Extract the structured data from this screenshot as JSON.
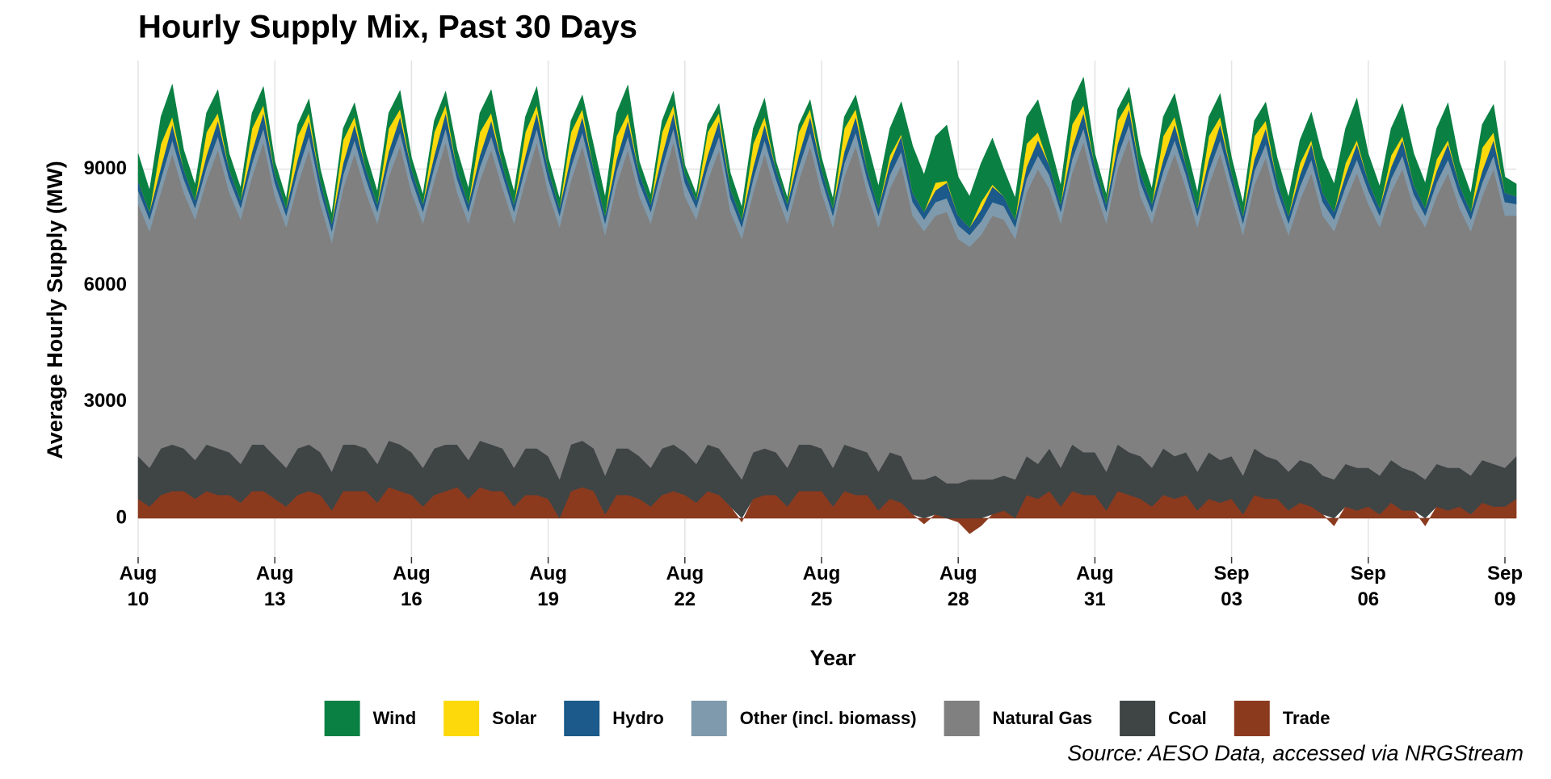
{
  "chart_data": {
    "type": "stacked_area",
    "title": "Hourly Supply Mix, Past 30 Days",
    "x_label": "Year",
    "y_label": "Average Hourly Supply (MW)",
    "source": "Source: AESO Data, accessed via NRGStream",
    "x": [
      "Aug 10 00:00",
      "Aug 10 06:00",
      "Aug 10 12:00",
      "Aug 10 18:00",
      "Aug 11 00:00",
      "Aug 11 06:00",
      "Aug 11 12:00",
      "Aug 11 18:00",
      "Aug 12 00:00",
      "Aug 12 06:00",
      "Aug 12 12:00",
      "Aug 12 18:00",
      "Aug 13 00:00",
      "Aug 13 06:00",
      "Aug 13 12:00",
      "Aug 13 18:00",
      "Aug 14 00:00",
      "Aug 14 06:00",
      "Aug 14 12:00",
      "Aug 14 18:00",
      "Aug 15 00:00",
      "Aug 15 06:00",
      "Aug 15 12:00",
      "Aug 15 18:00",
      "Aug 16 00:00",
      "Aug 16 06:00",
      "Aug 16 12:00",
      "Aug 16 18:00",
      "Aug 17 00:00",
      "Aug 17 06:00",
      "Aug 17 12:00",
      "Aug 17 18:00",
      "Aug 18 00:00",
      "Aug 18 06:00",
      "Aug 18 12:00",
      "Aug 18 18:00",
      "Aug 19 00:00",
      "Aug 19 06:00",
      "Aug 19 12:00",
      "Aug 19 18:00",
      "Aug 20 00:00",
      "Aug 20 06:00",
      "Aug 20 12:00",
      "Aug 20 18:00",
      "Aug 21 00:00",
      "Aug 21 06:00",
      "Aug 21 12:00",
      "Aug 21 18:00",
      "Aug 22 00:00",
      "Aug 22 06:00",
      "Aug 22 12:00",
      "Aug 22 18:00",
      "Aug 23 00:00",
      "Aug 23 06:00",
      "Aug 23 12:00",
      "Aug 23 18:00",
      "Aug 24 00:00",
      "Aug 24 06:00",
      "Aug 24 12:00",
      "Aug 24 18:00",
      "Aug 25 00:00",
      "Aug 25 06:00",
      "Aug 25 12:00",
      "Aug 25 18:00",
      "Aug 26 00:00",
      "Aug 26 06:00",
      "Aug 26 12:00",
      "Aug 26 18:00",
      "Aug 27 00:00",
      "Aug 27 06:00",
      "Aug 27 12:00",
      "Aug 27 18:00",
      "Aug 28 00:00",
      "Aug 28 06:00",
      "Aug 28 12:00",
      "Aug 28 18:00",
      "Aug 29 00:00",
      "Aug 29 06:00",
      "Aug 29 12:00",
      "Aug 29 18:00",
      "Aug 30 00:00",
      "Aug 30 06:00",
      "Aug 30 12:00",
      "Aug 30 18:00",
      "Aug 31 00:00",
      "Aug 31 06:00",
      "Aug 31 12:00",
      "Aug 31 18:00",
      "Sep 01 00:00",
      "Sep 01 06:00",
      "Sep 01 12:00",
      "Sep 01 18:00",
      "Sep 02 00:00",
      "Sep 02 06:00",
      "Sep 02 12:00",
      "Sep 02 18:00",
      "Sep 03 00:00",
      "Sep 03 06:00",
      "Sep 03 12:00",
      "Sep 03 18:00",
      "Sep 04 00:00",
      "Sep 04 06:00",
      "Sep 04 12:00",
      "Sep 04 18:00",
      "Sep 05 00:00",
      "Sep 05 06:00",
      "Sep 05 12:00",
      "Sep 05 18:00",
      "Sep 06 00:00",
      "Sep 06 06:00",
      "Sep 06 12:00",
      "Sep 06 18:00",
      "Sep 07 00:00",
      "Sep 07 06:00",
      "Sep 07 12:00",
      "Sep 07 18:00",
      "Sep 08 00:00",
      "Sep 08 06:00",
      "Sep 08 12:00",
      "Sep 08 18:00",
      "Sep 09 00:00",
      "Sep 09 06:00"
    ],
    "series": [
      {
        "name": "Wind",
        "color": "#0a8043",
        "values": [
          700,
          560,
          700,
          840,
          500,
          400,
          500,
          600,
          400,
          320,
          400,
          480,
          300,
          240,
          300,
          360,
          300,
          240,
          300,
          360,
          400,
          320,
          400,
          480,
          300,
          240,
          300,
          360,
          500,
          400,
          500,
          600,
          400,
          320,
          400,
          480,
          300,
          240,
          300,
          360,
          600,
          480,
          600,
          720,
          300,
          240,
          300,
          360,
          200,
          160,
          200,
          240,
          400,
          320,
          400,
          480,
          200,
          160,
          200,
          240,
          300,
          240,
          300,
          360,
          700,
          560,
          700,
          840,
          1200,
          960,
          1200,
          1440,
          1000,
          800,
          1000,
          1200,
          700,
          560,
          700,
          840,
          600,
          480,
          600,
          720,
          300,
          240,
          300,
          360,
          500,
          400,
          500,
          600,
          500,
          400,
          500,
          600,
          400,
          320,
          400,
          480,
          600,
          480,
          600,
          720,
          900,
          720,
          900,
          1080,
          700,
          560,
          700,
          840,
          800,
          640,
          800,
          960,
          600,
          480,
          600,
          720,
          400,
          320
        ]
      },
      {
        "name": "Solar",
        "color": "#fdd90b",
        "values": [
          0,
          0,
          600,
          200,
          0,
          0,
          600,
          200,
          0,
          0,
          600,
          200,
          0,
          0,
          600,
          200,
          0,
          0,
          600,
          200,
          0,
          0,
          600,
          200,
          0,
          0,
          600,
          200,
          0,
          0,
          600,
          200,
          0,
          0,
          600,
          200,
          0,
          0,
          600,
          200,
          0,
          0,
          600,
          200,
          0,
          0,
          600,
          200,
          0,
          0,
          600,
          200,
          0,
          0,
          600,
          200,
          0,
          0,
          600,
          200,
          0,
          0,
          600,
          200,
          0,
          0,
          200,
          50,
          0,
          0,
          200,
          50,
          0,
          0,
          200,
          50,
          0,
          0,
          600,
          200,
          0,
          0,
          600,
          200,
          0,
          0,
          600,
          200,
          0,
          0,
          600,
          200,
          0,
          0,
          600,
          200,
          0,
          0,
          600,
          200,
          0,
          0,
          300,
          100,
          0,
          0,
          300,
          100,
          0,
          0,
          300,
          100,
          0,
          0,
          300,
          100,
          0,
          0,
          600,
          200,
          0,
          0
        ]
      },
      {
        "name": "Hydro",
        "color": "#1b5a8a",
        "values": [
          250,
          200,
          300,
          400,
          250,
          200,
          300,
          400,
          250,
          200,
          300,
          400,
          250,
          200,
          300,
          400,
          250,
          200,
          300,
          400,
          250,
          200,
          300,
          400,
          250,
          200,
          300,
          400,
          250,
          200,
          300,
          400,
          250,
          200,
          300,
          400,
          250,
          200,
          300,
          400,
          250,
          200,
          300,
          400,
          250,
          200,
          300,
          400,
          250,
          200,
          300,
          400,
          250,
          200,
          300,
          400,
          250,
          200,
          300,
          400,
          250,
          200,
          300,
          400,
          250,
          200,
          300,
          400,
          250,
          200,
          300,
          400,
          250,
          200,
          300,
          400,
          250,
          200,
          300,
          400,
          250,
          200,
          300,
          400,
          250,
          200,
          300,
          400,
          250,
          200,
          300,
          400,
          250,
          200,
          300,
          400,
          250,
          200,
          300,
          400,
          250,
          200,
          300,
          400,
          250,
          200,
          300,
          400,
          250,
          200,
          300,
          400,
          250,
          200,
          300,
          400,
          250,
          200,
          300,
          400,
          250,
          200
        ]
      },
      {
        "name": "Other (incl. biomass)",
        "color": "#7f9aac",
        "values": [
          350,
          300,
          350,
          350,
          350,
          300,
          350,
          350,
          350,
          300,
          350,
          350,
          350,
          300,
          350,
          350,
          350,
          300,
          350,
          350,
          350,
          300,
          350,
          350,
          350,
          300,
          350,
          350,
          350,
          300,
          350,
          350,
          350,
          300,
          350,
          350,
          350,
          300,
          350,
          350,
          350,
          300,
          350,
          350,
          350,
          300,
          350,
          350,
          350,
          300,
          350,
          350,
          350,
          300,
          350,
          350,
          350,
          300,
          350,
          350,
          350,
          300,
          350,
          350,
          350,
          300,
          350,
          350,
          350,
          300,
          350,
          350,
          350,
          300,
          350,
          350,
          350,
          300,
          350,
          350,
          350,
          300,
          350,
          350,
          350,
          300,
          350,
          350,
          350,
          300,
          350,
          350,
          350,
          300,
          350,
          350,
          350,
          300,
          350,
          350,
          350,
          300,
          350,
          350,
          350,
          300,
          350,
          350,
          350,
          300,
          350,
          350,
          350,
          300,
          350,
          350,
          350,
          300,
          350,
          350,
          350,
          300
        ]
      },
      {
        "name": "Natural Gas",
        "color": "#808080",
        "values": [
          6500,
          6100,
          6600,
          7500,
          6600,
          6200,
          6800,
          7700,
          6700,
          6300,
          6900,
          7800,
          6700,
          6200,
          6800,
          7600,
          6400,
          5900,
          6600,
          7500,
          6600,
          6200,
          6800,
          7700,
          6700,
          6300,
          6900,
          7800,
          6500,
          6100,
          6700,
          7600,
          6700,
          6300,
          6900,
          7900,
          6800,
          6500,
          6800,
          7600,
          6600,
          6200,
          6800,
          7700,
          6700,
          6300,
          6900,
          7800,
          6600,
          6300,
          6800,
          7700,
          6500,
          6200,
          6700,
          7600,
          6700,
          6300,
          6800,
          7700,
          6600,
          6200,
          6900,
          7800,
          6700,
          6300,
          6800,
          7500,
          6800,
          6400,
          6700,
          7000,
          6300,
          6000,
          6300,
          6800,
          6600,
          6200,
          6800,
          7600,
          6700,
          6300,
          7000,
          8000,
          6800,
          6400,
          7100,
          8100,
          6700,
          6300,
          6800,
          7800,
          6800,
          6300,
          6900,
          7900,
          6700,
          6200,
          6800,
          7700,
          6600,
          6100,
          6700,
          7500,
          6700,
          6400,
          6800,
          7600,
          6800,
          6400,
          6900,
          7700,
          6800,
          6500,
          6900,
          7600,
          6700,
          6300,
          6800,
          7600,
          6500,
          6200
        ]
      },
      {
        "name": "Coal",
        "color": "#3f4445",
        "values": [
          1100,
          1000,
          1200,
          1200,
          1100,
          1000,
          1200,
          1200,
          1100,
          1000,
          1200,
          1200,
          1100,
          1000,
          1200,
          1200,
          1100,
          1000,
          1200,
          1200,
          1100,
          1000,
          1200,
          1200,
          1100,
          1000,
          1200,
          1200,
          1100,
          1000,
          1200,
          1200,
          1100,
          1000,
          1200,
          1200,
          1100,
          1000,
          1200,
          1200,
          1100,
          1000,
          1200,
          1200,
          1100,
          1000,
          1200,
          1200,
          1100,
          1000,
          1200,
          1200,
          1100,
          1000,
          1200,
          1200,
          1100,
          1000,
          1200,
          1200,
          1100,
          1000,
          1200,
          1200,
          1100,
          1000,
          1200,
          1200,
          900,
          1000,
          1000,
          900,
          900,
          1000,
          1000,
          900,
          900,
          1000,
          1000,
          900,
          1100,
          1000,
          1200,
          1100,
          1100,
          1000,
          1200,
          1100,
          1100,
          1000,
          1200,
          1100,
          1100,
          1000,
          1200,
          1100,
          1100,
          1000,
          1200,
          1100,
          1000,
          1000,
          1100,
          1100,
          1000,
          1000,
          1100,
          1100,
          1000,
          1000,
          1100,
          1100,
          1000,
          1000,
          1100,
          1100,
          1000,
          1000,
          1100,
          1100,
          1000,
          1100
        ]
      },
      {
        "name": "Trade",
        "color": "#8b3a1e",
        "values": [
          500,
          300,
          600,
          700,
          700,
          500,
          700,
          600,
          600,
          400,
          700,
          700,
          500,
          300,
          600,
          700,
          600,
          200,
          700,
          700,
          700,
          400,
          800,
          700,
          600,
          300,
          600,
          700,
          800,
          500,
          800,
          700,
          700,
          300,
          600,
          600,
          500,
          0,
          700,
          800,
          700,
          100,
          600,
          600,
          500,
          300,
          600,
          700,
          600,
          400,
          700,
          600,
          300,
          -100,
          500,
          600,
          600,
          300,
          700,
          700,
          700,
          300,
          700,
          600,
          600,
          200,
          500,
          400,
          100,
          -150,
          100,
          0,
          -100,
          -400,
          -200,
          100,
          200,
          0,
          600,
          500,
          700,
          300,
          700,
          600,
          600,
          200,
          700,
          600,
          500,
          300,
          600,
          500,
          600,
          200,
          500,
          400,
          500,
          100,
          600,
          500,
          500,
          200,
          400,
          300,
          100,
          -200,
          300,
          200,
          300,
          100,
          400,
          200,
          200,
          -200,
          300,
          200,
          300,
          100,
          400,
          300,
          300,
          500
        ]
      }
    ],
    "ylim": [
      -1000,
      11800
    ],
    "yticks": [
      0,
      3000,
      6000,
      9000
    ],
    "xticks": [
      {
        "value": "Aug 10 00:00",
        "label": "Aug 10"
      },
      {
        "value": "Aug 13 00:00",
        "label": "Aug 13"
      },
      {
        "value": "Aug 16 00:00",
        "label": "Aug 16"
      },
      {
        "value": "Aug 19 00:00",
        "label": "Aug 19"
      },
      {
        "value": "Aug 22 00:00",
        "label": "Aug 22"
      },
      {
        "value": "Aug 25 00:00",
        "label": "Aug 25"
      },
      {
        "value": "Aug 28 00:00",
        "label": "Aug 28"
      },
      {
        "value": "Aug 31 00:00",
        "label": "Aug 31"
      },
      {
        "value": "Sep 03 00:00",
        "label": "Sep 03"
      },
      {
        "value": "Sep 06 00:00",
        "label": "Sep 06"
      },
      {
        "value": "Sep 09 00:00",
        "label": "Sep 09"
      }
    ],
    "grid": true,
    "legend": "bottom"
  }
}
